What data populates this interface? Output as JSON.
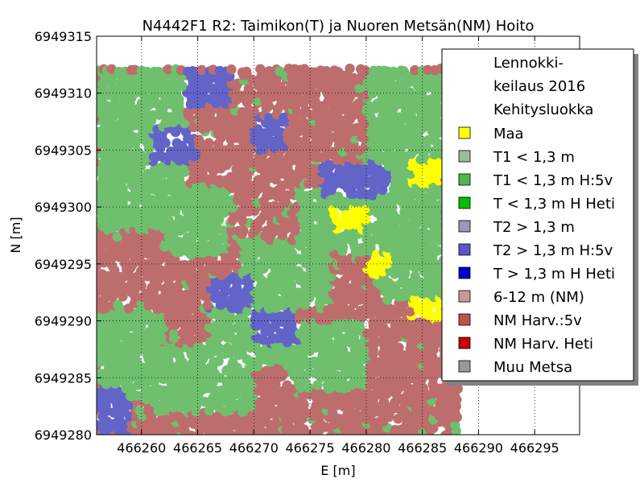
{
  "chart_data": {
    "type": "scatter",
    "title": "N4442F1 R2: Taimikon(T) ja Nuoren Metsän(NM) Hoito",
    "xlabel": "E [m]",
    "ylabel": "N [m]",
    "xlim": [
      466256,
      466299
    ],
    "ylim": [
      6949280,
      6949315
    ],
    "xticks": [
      466260,
      466265,
      466270,
      466275,
      466280,
      466285,
      466290,
      466295
    ],
    "yticks": [
      6949280,
      6949285,
      6949290,
      6949295,
      6949300,
      6949305,
      6949310,
      6949315
    ],
    "grid": true,
    "legend_position": "upper right",
    "legend": {
      "title_lines": [
        "Lennokki-",
        "keilaus 2016",
        "Kehitysluokka"
      ],
      "entries": [
        {
          "label": "Maa",
          "color": "#ffff00"
        },
        {
          "label": "T1 < 1,3 m",
          "color": "#99bf99"
        },
        {
          "label": "T1 < 1,3 m H:5v",
          "color": "#4fb94f"
        },
        {
          "label": "T < 1,3 m H Heti",
          "color": "#00c000"
        },
        {
          "label": "T2 > 1,3 m",
          "color": "#9a97c0"
        },
        {
          "label": "T2 > 1,3 m H:5v",
          "color": "#5a57c8"
        },
        {
          "label": "T > 1,3 m H Heti",
          "color": "#0000c8"
        },
        {
          "label": "6-12 m (NM)",
          "color": "#c79a9a"
        },
        {
          "label": "NM Harv.:5v",
          "color": "#c0504d"
        },
        {
          "label": "NM Harv. Heti",
          "color": "#c80000"
        },
        {
          "label": "Muu Metsa",
          "color": "#999999"
        }
      ]
    },
    "point_colors": {
      "maa": "#ffff00",
      "t1_h5v": "#6fbf6f",
      "t2_h5v": "#6264c8",
      "nm_harv_5v": "#bd6e6c"
    },
    "data_extent": {
      "x": [
        466256,
        466288
      ],
      "y": [
        6949280,
        6949312
      ]
    },
    "regions": [
      {
        "class": "t1_h5v",
        "x": [
          466256,
          466264
        ],
        "y": [
          6949298,
          6949312
        ]
      },
      {
        "class": "t1_h5v",
        "x": [
          466262,
          466268
        ],
        "y": [
          6949296,
          6949302
        ]
      },
      {
        "class": "t1_h5v",
        "x": [
          466256,
          466262
        ],
        "y": [
          6949283,
          6949291
        ]
      },
      {
        "class": "t1_h5v",
        "x": [
          466261,
          466270
        ],
        "y": [
          6949282,
          6949288
        ]
      },
      {
        "class": "t1_h5v",
        "x": [
          466266,
          466274
        ],
        "y": [
          6949286,
          6949292
        ]
      },
      {
        "class": "t1_h5v",
        "x": [
          466269,
          466277
        ],
        "y": [
          6949291,
          6949297
        ]
      },
      {
        "class": "t1_h5v",
        "x": [
          466274,
          466282
        ],
        "y": [
          6949296,
          6949302
        ]
      },
      {
        "class": "t1_h5v",
        "x": [
          466278,
          466287
        ],
        "y": [
          6949297,
          6949304
        ]
      },
      {
        "class": "t1_h5v",
        "x": [
          466281,
          466288
        ],
        "y": [
          6949292,
          6949297
        ]
      },
      {
        "class": "t1_h5v",
        "x": [
          466280,
          466288
        ],
        "y": [
          6949304,
          6949312
        ]
      },
      {
        "class": "t1_h5v",
        "x": [
          466273,
          466280
        ],
        "y": [
          6949284,
          6949290
        ]
      },
      {
        "class": "t2_h5v",
        "x": [
          466261,
          466265
        ],
        "y": [
          6949304,
          6949307
        ]
      },
      {
        "class": "t2_h5v",
        "x": [
          466270,
          466273
        ],
        "y": [
          6949305,
          6949308
        ]
      },
      {
        "class": "t2_h5v",
        "x": [
          466276,
          466282
        ],
        "y": [
          6949301,
          6949304
        ]
      },
      {
        "class": "t2_h5v",
        "x": [
          466266,
          466270
        ],
        "y": [
          6949291,
          6949294
        ]
      },
      {
        "class": "t2_h5v",
        "x": [
          466270,
          466274
        ],
        "y": [
          6949288,
          6949291
        ]
      },
      {
        "class": "t2_h5v",
        "x": [
          466264,
          466268
        ],
        "y": [
          6949309,
          6949312
        ]
      },
      {
        "class": "t2_h5v",
        "x": [
          466256,
          466259
        ],
        "y": [
          6949280,
          6949284
        ]
      },
      {
        "class": "maa",
        "x": [
          466284,
          466287
        ],
        "y": [
          6949302,
          6949304
        ]
      },
      {
        "class": "maa",
        "x": [
          466284,
          466287
        ],
        "y": [
          6949290,
          6949292
        ]
      },
      {
        "class": "maa",
        "x": [
          466280,
          466282
        ],
        "y": [
          6949294,
          6949296
        ]
      },
      {
        "class": "maa",
        "x": [
          466277,
          466280
        ],
        "y": [
          6949298,
          6949300
        ]
      }
    ]
  }
}
